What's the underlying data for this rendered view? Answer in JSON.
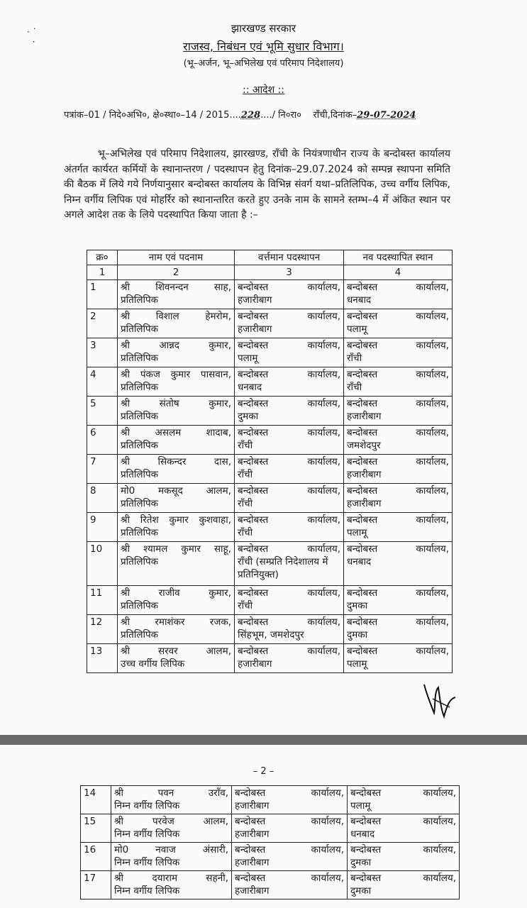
{
  "header": {
    "government": "झारखण्ड सरकार",
    "department": "राजस्व, निबंधन एवं भूमि सुधार विभाग।",
    "directorate": "(भू–अर्जन, भू–अभिलेख एवं परिमाप निदेशालय)",
    "order_title": ":: आदेश ::"
  },
  "reference": {
    "letter_no_prefix": "पत्रांक–01 / निदे०अभि०, क्षे०स्था०–14 / 2015",
    "letter_no_handwritten": "228",
    "letter_no_suffix": "/ नि०रा०",
    "place_date_label": "राँची,दिनांक–",
    "date_handwritten": "29-07-2024"
  },
  "body_text": "भू–अभिलेख एवं परिमाप निदेशालय, झारखण्ड, राँची के नियंत्रणाधीन राज्य के बन्दोबस्त कार्यालय अंतर्गत कार्यरत कर्मियों के स्थानान्तरण / पदस्थापन हेतु दिनांक–29.07.2024 को सम्पन्न स्थापना समिति की बैठक में लिये गये निर्णयानुसार बन्दोबस्त कार्यालय के विभिन्न संवर्ग यथा–प्रतिलिपिक, उच्च वर्गीय लिपिक, निम्न वर्गीय लिपिक एवं मोहर्रिर को स्थानान्तरित करते हुए उनके नाम के सामने स्तम्भ–4 में अंकित स्थान पर अगले आदेश तक के लिये पदस्थापित किया जाता है :–",
  "table": {
    "headers": [
      "क्र०",
      "नाम एवं पदनाम",
      "वर्त्तमान पदस्थापन",
      "नव पदस्थापित स्थान"
    ],
    "column_numbers": [
      "1",
      "2",
      "3",
      "4"
    ],
    "rows_page1": [
      {
        "no": "1",
        "name": "श्री शिवनन्दन साह,",
        "post": "प्रतिलिपिक",
        "current1": "बन्दोबस्त कार्यालय,",
        "current2": "हजारीबाग",
        "new1": "बन्दोबस्त कार्यालय,",
        "new2": "धनबाद"
      },
      {
        "no": "2",
        "name": "श्री विशाल हेमरोम,",
        "post": "प्रतिलिपिक",
        "current1": "बन्दोबस्त कार्यालय,",
        "current2": "हजारीबाग",
        "new1": "बन्दोबस्त कार्यालय,",
        "new2": "पलामू"
      },
      {
        "no": "3",
        "name": "श्री आन्नद कुमार,",
        "post": "प्रतिलिपिक",
        "current1": "बन्दोबस्त कार्यालय,",
        "current2": "पलामू",
        "new1": "बन्दोबस्त कार्यालय,",
        "new2": "राँची"
      },
      {
        "no": "4",
        "name": "श्री पंकज कुमार पासवान,",
        "post": "प्रतिलिपिक",
        "current1": "बन्दोबस्त कार्यालय,",
        "current2": "धनबाद",
        "new1": "बन्दोबस्त कार्यालय,",
        "new2": "राँची"
      },
      {
        "no": "5",
        "name": "श्री संतोष कुमार,",
        "post": "प्रतिलिपिक",
        "current1": "बन्दोबस्त कार्यालय,",
        "current2": "दुमका",
        "new1": "बन्दोबस्त कार्यालय,",
        "new2": "हजारीबाग"
      },
      {
        "no": "6",
        "name": "श्री असलम शादाब,",
        "post": "प्रतिलिपिक",
        "current1": "बन्दोबस्त कार्यालय,",
        "current2": "राँची",
        "new1": "बन्दोबस्त कार्यालय,",
        "new2": "जमशेदपुर"
      },
      {
        "no": "7",
        "name": "श्री सिकन्दर दास,",
        "post": "प्रतिलिपिक",
        "current1": "बन्दोबस्त कार्यालय,",
        "current2": "राँची",
        "new1": "बन्दोबस्त कार्यालय,",
        "new2": "हजारीबाग"
      },
      {
        "no": "8",
        "name": "मो0 मकसूद आलम,",
        "post": "प्रतिलिपिक",
        "current1": "बन्दोबस्त कार्यालय,",
        "current2": "राँची",
        "new1": "बन्दोबस्त कार्यालय,",
        "new2": "हजारीबाग"
      },
      {
        "no": "9",
        "name": "श्री रितेश कुमार कुशवाहा,",
        "post": "प्रतिलिपिक",
        "current1": "बन्दोबस्त कार्यालय,",
        "current2": "राँची",
        "new1": "बन्दोबस्त कार्यालय,",
        "new2": "पलामू"
      },
      {
        "no": "10",
        "name": "श्री श्यामल कुमार साहू,",
        "post": "प्रतिलिपिक",
        "current1": "बन्दोबस्त कार्यालय,",
        "current2": "राँची (सम्प्रति निदेशालय में प्रतिनियुक्त)",
        "new1": "बन्दोबस्त कार्यालय,",
        "new2": "धनबाद"
      },
      {
        "no": "11",
        "name": "श्री राजीव कुमार,",
        "post": "प्रतिलिपिक",
        "current1": "बन्दोबस्त कार्यालय,",
        "current2": "राँची",
        "new1": "बन्दोबस्त कार्यालय,",
        "new2": "दुमका"
      },
      {
        "no": "12",
        "name": "श्री रमाशंकर रजक,",
        "post": "प्रतिलिपिक",
        "current1": "बन्दोबस्त कार्यालय,",
        "current2": "सिंहभूम, जमशेदपुर",
        "new1": "बन्दोबस्त कार्यालय,",
        "new2": "दुमका"
      },
      {
        "no": "13",
        "name": "श्री सरवर आलम,",
        "post": "उच्च वर्गीय लिपिक",
        "current1": "बन्दोबस्त कार्यालय,",
        "current2": "हजारीबाग",
        "new1": "बन्दोबस्त कार्यालय,",
        "new2": "पलामू"
      }
    ],
    "rows_page2": [
      {
        "no": "14",
        "name": "श्री पवन उराँव,",
        "post": "निम्न वर्गीय लिपिक",
        "current1": "बन्दोबस्त कार्यालय,",
        "current2": "हजारीबाग",
        "new1": "बन्दोबस्त कार्यालय,",
        "new2": "पलामू"
      },
      {
        "no": "15",
        "name": "श्री परवेज आलम,",
        "post": "निम्न वर्गीय लिपिक",
        "current1": "बन्दोबस्त कार्यालय,",
        "current2": "हजारीबाग",
        "new1": "बन्दोबस्त कार्यालय,",
        "new2": "धनबाद"
      },
      {
        "no": "16",
        "name": "मो0 नवाज अंसारी,",
        "post": "निम्न वर्गीय लिपिक",
        "current1": "बन्दोबस्त कार्यालय,",
        "current2": "हजारीबाग",
        "new1": "बन्दोबस्त कार्यालय,",
        "new2": "दुमका"
      },
      {
        "no": "17",
        "name": "श्री दयाराम सहनी,",
        "post": "निम्न वर्गीय लिपिक",
        "current1": "बन्दोबस्त कार्यालय,",
        "current2": "हजारीबाग",
        "new1": "बन्दोबस्त कार्यालय,",
        "new2": "दुमका"
      }
    ]
  },
  "page2_number": "– 2 –"
}
